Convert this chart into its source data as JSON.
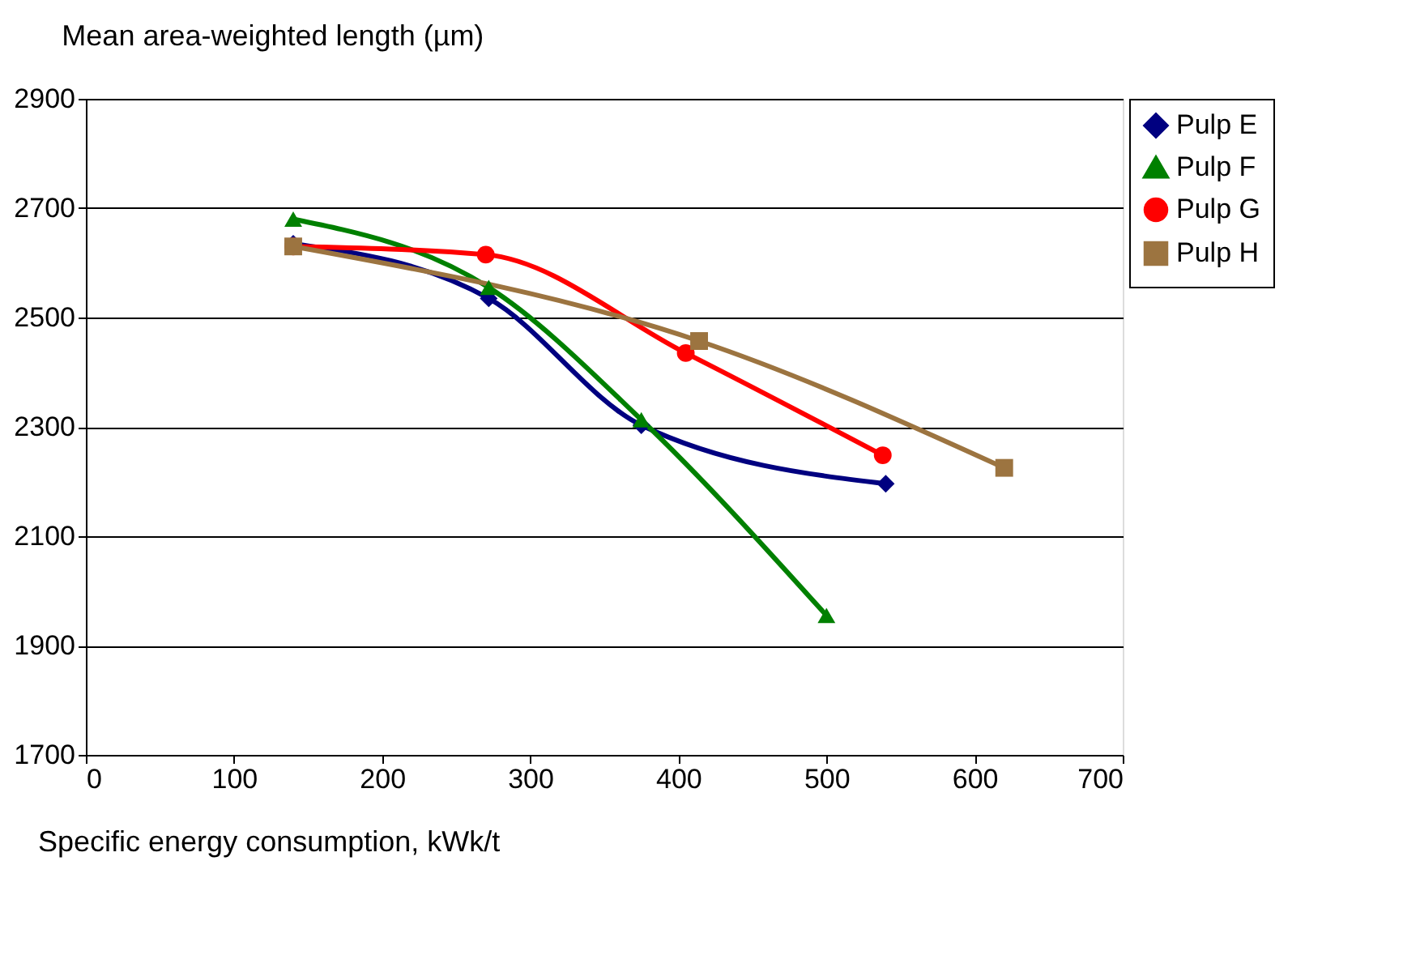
{
  "chart_data": {
    "type": "line",
    "title": "Mean area-weighted length (µm)",
    "xlabel": "Specific energy consumption, kWk/t",
    "xlim": [
      0,
      700
    ],
    "xticks": [
      0,
      100,
      200,
      300,
      400,
      500,
      600,
      700
    ],
    "ylim": [
      1700,
      2900
    ],
    "yticks": [
      1700,
      1900,
      2100,
      2300,
      2500,
      2700,
      2900
    ],
    "grid": "y",
    "legend": "right",
    "line_style": "solid",
    "series": [
      {
        "name": "Pulp E",
        "color": "#000080",
        "marker": "diamond",
        "x": [
          140,
          272,
          375,
          540
        ],
        "values": [
          2635,
          2535,
          2303,
          2196
        ]
      },
      {
        "name": "Pulp F",
        "color": "#008000",
        "marker": "triangle",
        "x": [
          140,
          272,
          375,
          500
        ],
        "values": [
          2680,
          2555,
          2313,
          1955
        ]
      },
      {
        "name": "Pulp G",
        "color": "#ff0000",
        "marker": "circle",
        "x": [
          140,
          270,
          405,
          538
        ],
        "values": [
          2630,
          2615,
          2435,
          2248
        ]
      },
      {
        "name": "Pulp H",
        "color": "#9c7440",
        "marker": "square",
        "x": [
          140,
          414,
          620
        ],
        "values": [
          2630,
          2457,
          2225
        ]
      }
    ]
  }
}
